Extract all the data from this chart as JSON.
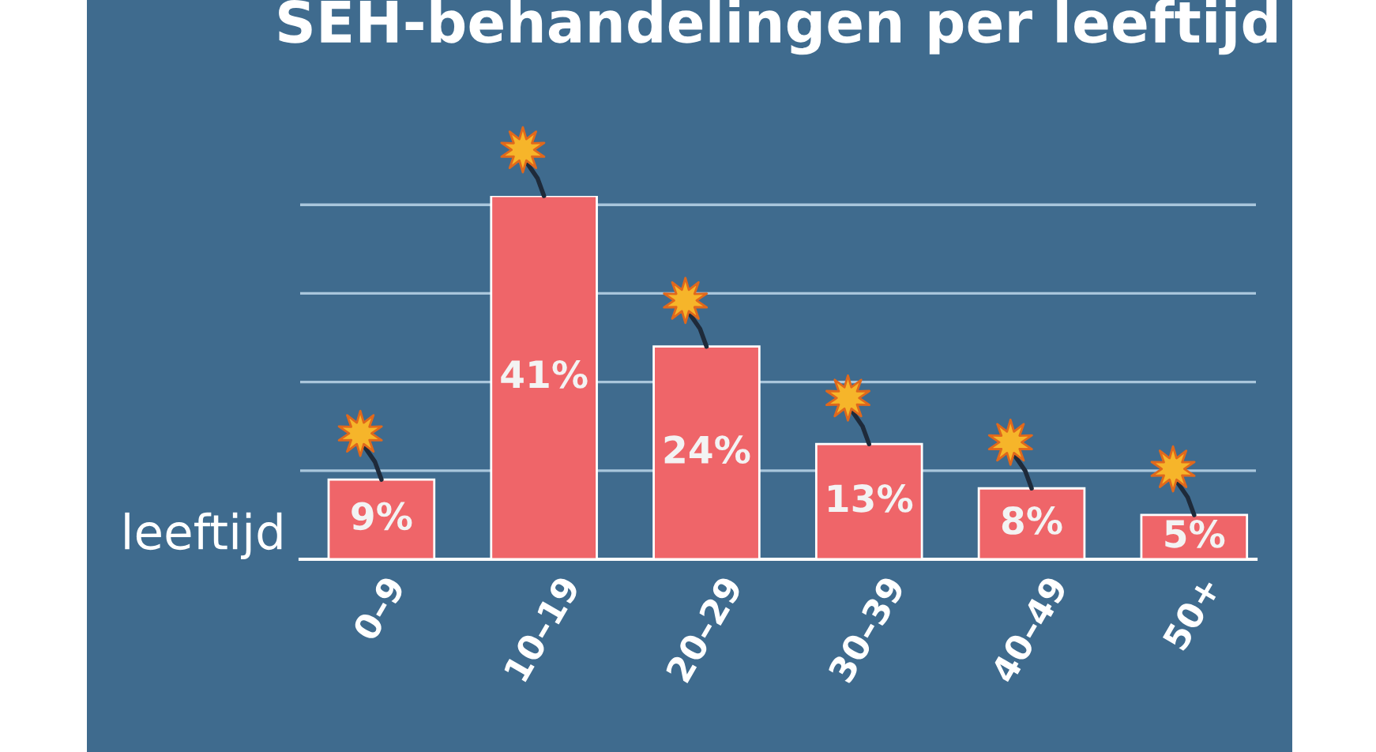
{
  "chart_data": {
    "type": "bar",
    "title": "SEH-behandelingen per leeftijd",
    "xlabel": "leeftijd",
    "categories": [
      "0–9",
      "10–19",
      "20–29",
      "30–39",
      "40–49",
      "50+"
    ],
    "values": [
      9,
      41,
      24,
      13,
      8,
      5
    ],
    "value_labels": [
      "9%",
      "41%",
      "24%",
      "13%",
      "8%",
      "5%"
    ],
    "color": "#ef6569",
    "ylim": [
      0,
      41
    ],
    "yticks": [
      {
        "value": 10,
        "label": null
      },
      {
        "value": 20,
        "label": null
      },
      {
        "value": 30,
        "label": null
      },
      {
        "value": 40,
        "label": null
      }
    ],
    "grid": "y",
    "tick_labels": "x"
  }
}
